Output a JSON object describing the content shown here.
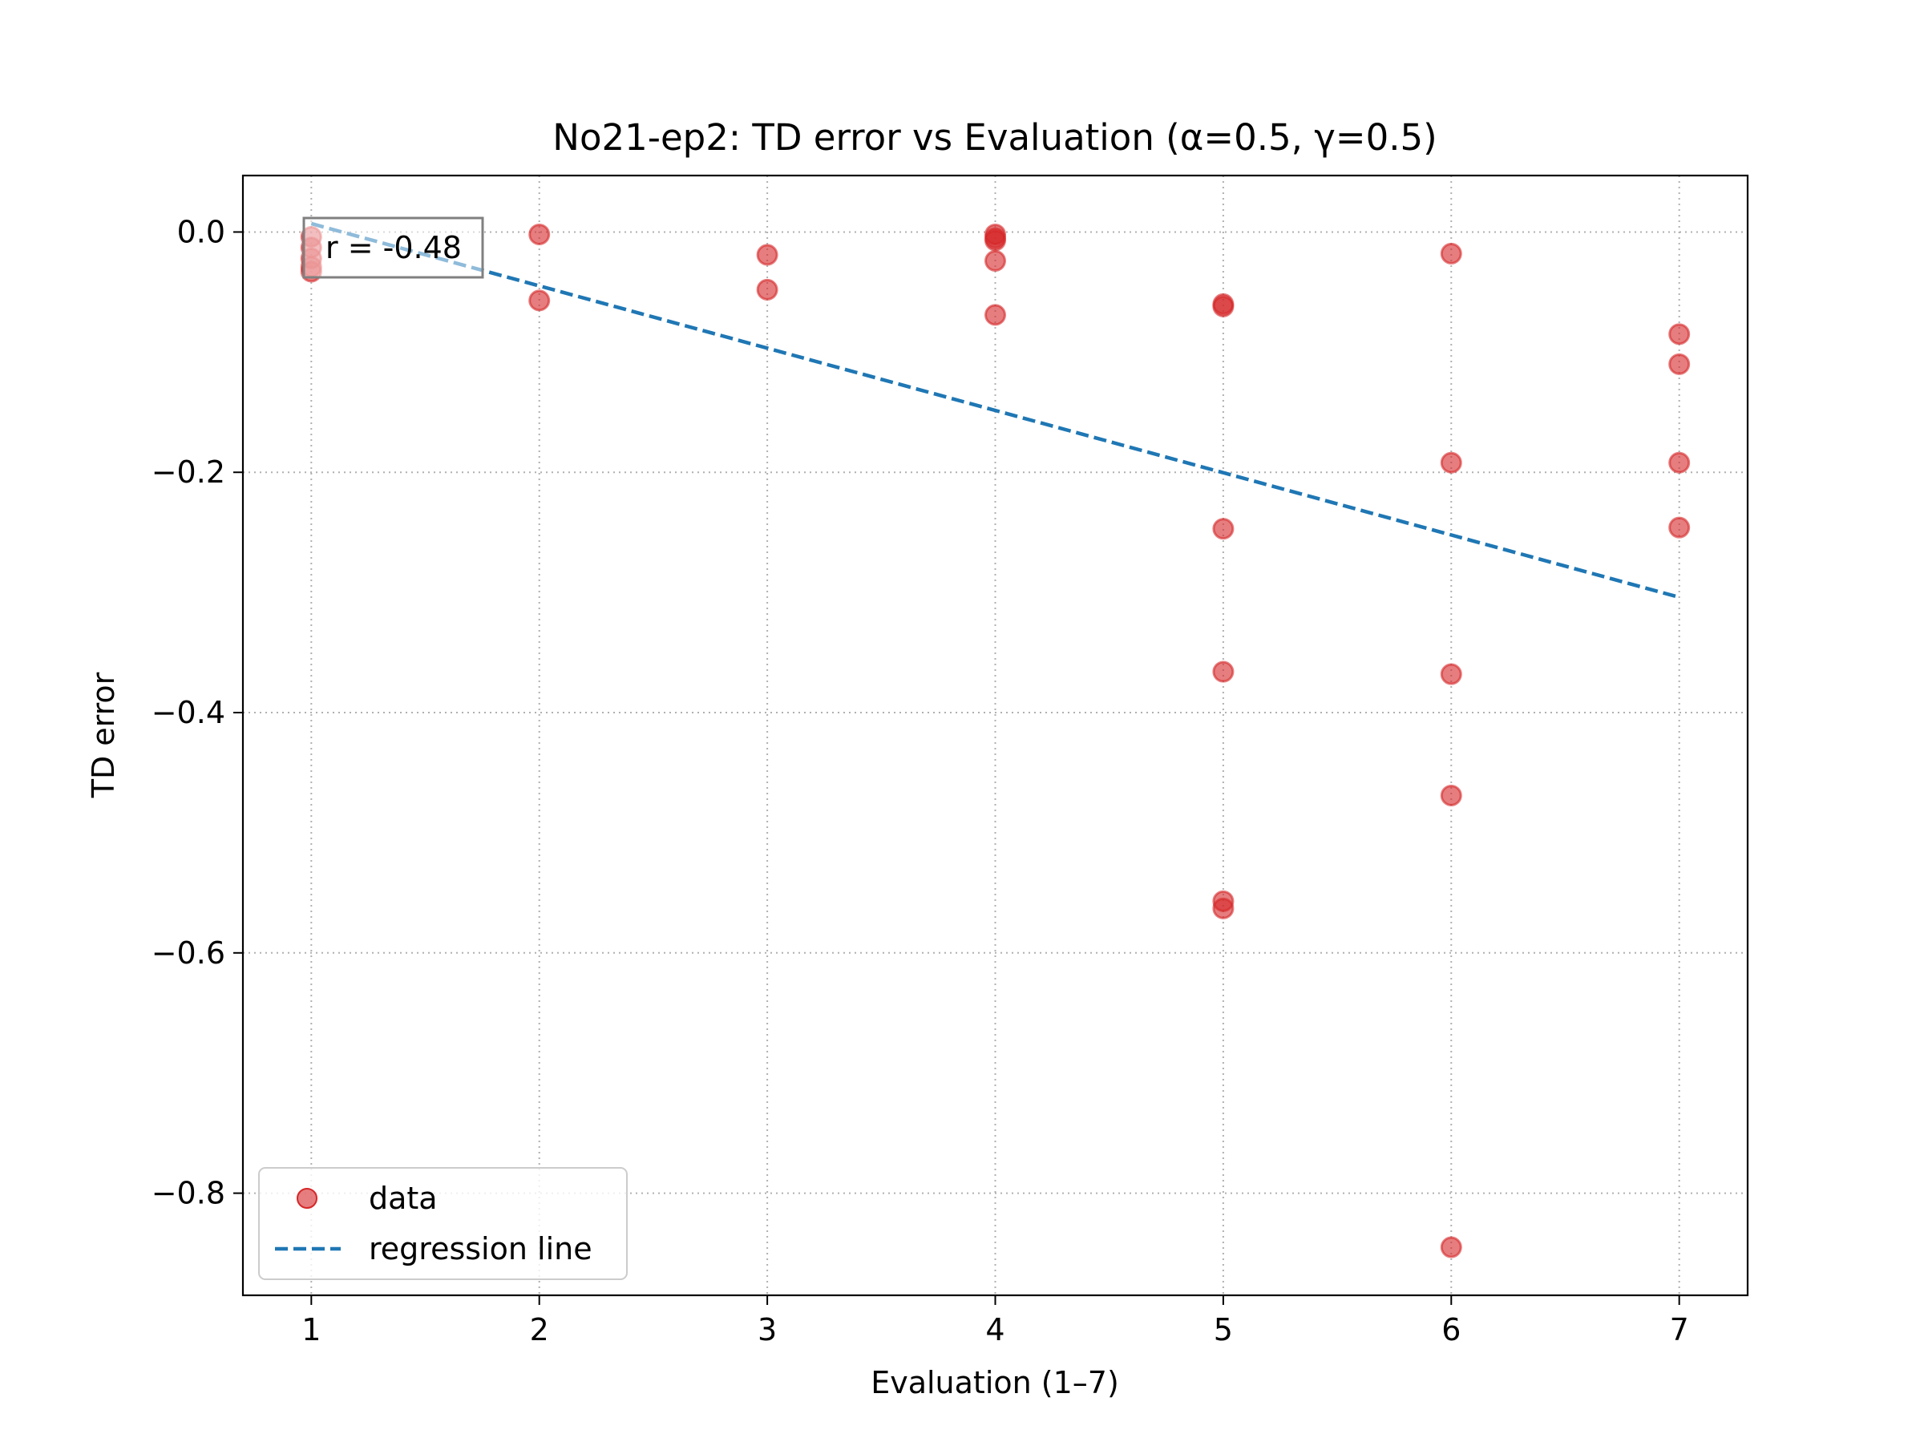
{
  "chart_data": {
    "type": "scatter",
    "title": "No21-ep2: TD error vs Evaluation (α=0.5, γ=0.5)",
    "xlabel": "Evaluation (1–7)",
    "ylabel": "TD error",
    "xlim": [
      0.7,
      7.3
    ],
    "ylim": [
      -0.885,
      0.047
    ],
    "xticks": [
      1,
      2,
      3,
      4,
      5,
      6,
      7
    ],
    "xtick_labels": [
      "1",
      "2",
      "3",
      "4",
      "5",
      "6",
      "7"
    ],
    "yticks": [
      0.0,
      -0.2,
      -0.4,
      -0.6,
      -0.8
    ],
    "ytick_labels": [
      "0.0",
      "−0.2",
      "−0.4",
      "−0.6",
      "−0.8"
    ],
    "grid": true,
    "legend_position": "lower-left",
    "annotation": "r = -0.48",
    "series": [
      {
        "name": "data",
        "kind": "scatter",
        "color": "#d62728",
        "points": [
          {
            "x": 1,
            "y": -0.004
          },
          {
            "x": 1,
            "y": -0.013
          },
          {
            "x": 1,
            "y": -0.022
          },
          {
            "x": 1,
            "y": -0.029
          },
          {
            "x": 1,
            "y": -0.033
          },
          {
            "x": 2,
            "y": -0.002
          },
          {
            "x": 2,
            "y": -0.057
          },
          {
            "x": 3,
            "y": -0.019
          },
          {
            "x": 3,
            "y": -0.048
          },
          {
            "x": 4,
            "y": -0.002
          },
          {
            "x": 4,
            "y": -0.005
          },
          {
            "x": 4,
            "y": -0.007
          },
          {
            "x": 4,
            "y": -0.024
          },
          {
            "x": 4,
            "y": -0.069
          },
          {
            "x": 5,
            "y": -0.06
          },
          {
            "x": 5,
            "y": -0.062
          },
          {
            "x": 5,
            "y": -0.247
          },
          {
            "x": 5,
            "y": -0.366
          },
          {
            "x": 5,
            "y": -0.557
          },
          {
            "x": 5,
            "y": -0.563
          },
          {
            "x": 6,
            "y": -0.018
          },
          {
            "x": 6,
            "y": -0.192
          },
          {
            "x": 6,
            "y": -0.368
          },
          {
            "x": 6,
            "y": -0.469
          },
          {
            "x": 6,
            "y": -0.845
          },
          {
            "x": 7,
            "y": -0.085
          },
          {
            "x": 7,
            "y": -0.11
          },
          {
            "x": 7,
            "y": -0.192
          },
          {
            "x": 7,
            "y": -0.246
          }
        ]
      },
      {
        "name": "regression line",
        "kind": "line",
        "style": "dashed",
        "color": "#1f77b4",
        "points": [
          {
            "x": 1,
            "y": 0.007
          },
          {
            "x": 7,
            "y": -0.304
          }
        ]
      }
    ]
  }
}
